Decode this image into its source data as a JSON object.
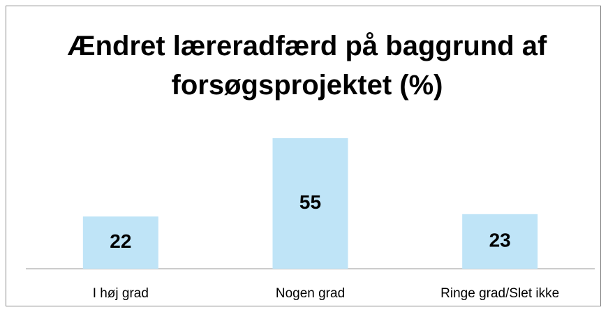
{
  "chart_data": {
    "type": "bar",
    "title": "Ændret læreradfærd på baggrund af forsøgsprojektet (%)",
    "categories": [
      "I høj grad",
      "Nogen grad",
      "Ringe grad/Slet ikke"
    ],
    "values": [
      22,
      55,
      23
    ],
    "color": "#bfe4f7",
    "ylim": [
      0,
      60
    ],
    "grid": false
  }
}
